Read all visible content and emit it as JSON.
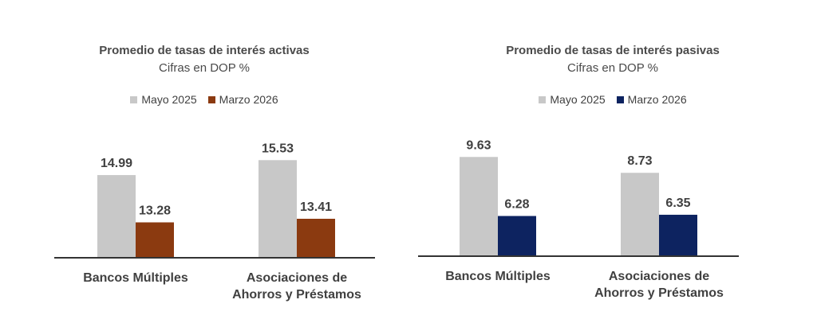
{
  "colors": {
    "mayo": "#c8c8c8",
    "marzo_activas": "#8b3a10",
    "marzo_pasivas": "#0d2360",
    "axis": "#333333"
  },
  "chart_data": [
    {
      "type": "bar",
      "title": "Promedio de tasas de interés activas",
      "subtitle": "Cifras en DOP %",
      "categories": [
        [
          "Bancos Múltiples"
        ],
        [
          "Asociaciones de",
          "Ahorros y Préstamos"
        ]
      ],
      "series": [
        {
          "name": "Mayo 2025",
          "values": [
            14.99,
            15.53
          ],
          "color": "#c8c8c8"
        },
        {
          "name": "Marzo 2026",
          "values": [
            13.28,
            13.41
          ],
          "color": "#8b3a10"
        }
      ],
      "ylim": [
        12,
        16.2
      ],
      "legend": "top",
      "grid": false
    },
    {
      "type": "bar",
      "title": "Promedio de tasas de interés pasivas",
      "subtitle": "Cifras en DOP %",
      "categories": [
        [
          "Bancos Múltiples"
        ],
        [
          "Asociaciones de",
          "Ahorros y Préstamos"
        ]
      ],
      "series": [
        {
          "name": "Mayo 2025",
          "values": [
            9.63,
            8.73
          ],
          "color": "#c8c8c8"
        },
        {
          "name": "Marzo 2026",
          "values": [
            6.28,
            6.35
          ],
          "color": "#0d2360"
        }
      ],
      "ylim": [
        4,
        10.5
      ],
      "legend": "top",
      "grid": false
    }
  ]
}
